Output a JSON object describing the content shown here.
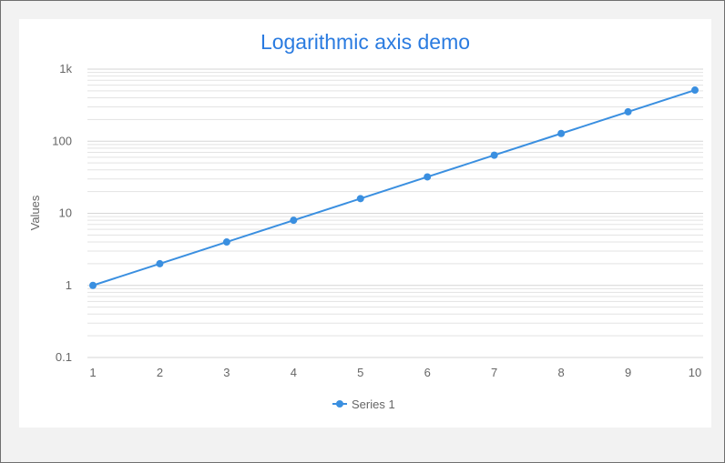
{
  "chart_data": {
    "type": "line",
    "title": "Logarithmic axis demo",
    "xlabel": "",
    "ylabel": "Values",
    "y_scale": "log",
    "ylim": [
      0.1,
      1000
    ],
    "xlim": [
      1,
      10
    ],
    "x_ticks": [
      "1",
      "2",
      "3",
      "4",
      "5",
      "6",
      "7",
      "8",
      "9",
      "10"
    ],
    "y_ticks": [
      {
        "value": 0.1,
        "label": "0.1"
      },
      {
        "value": 1,
        "label": "1"
      },
      {
        "value": 10,
        "label": "10"
      },
      {
        "value": 100,
        "label": "100"
      },
      {
        "value": 1000,
        "label": "1k"
      }
    ],
    "grid": true,
    "legend_position": "bottom",
    "series": [
      {
        "name": "Series 1",
        "color": "#3a8fe0",
        "x": [
          1,
          2,
          3,
          4,
          5,
          6,
          7,
          8,
          9,
          10
        ],
        "values": [
          1,
          2,
          4,
          8,
          16,
          32,
          64,
          128,
          256,
          512
        ]
      }
    ]
  },
  "colors": {
    "title": "#2a7be0",
    "axis_text": "#666666",
    "grid": "#e3e3e3",
    "background": "#f2f2f2",
    "card": "#ffffff"
  }
}
